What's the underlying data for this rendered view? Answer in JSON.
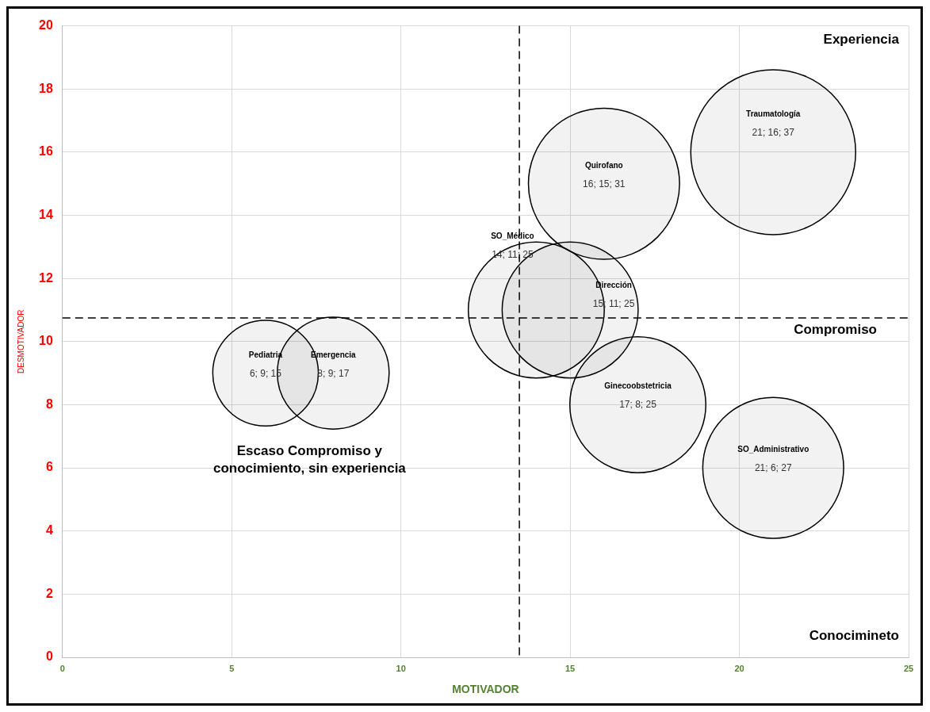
{
  "chart_data": {
    "type": "bubble",
    "xlabel": "MOTIVADOR",
    "ylabel": "DESMOTIVADOR",
    "xlim": [
      0,
      25
    ],
    "xticks": [
      0,
      5,
      10,
      15,
      20,
      25
    ],
    "ylim": [
      0,
      20
    ],
    "yticks": [
      0,
      2,
      4,
      6,
      8,
      10,
      12,
      14,
      16,
      18,
      20
    ],
    "grid": true,
    "legend": false,
    "series": [
      {
        "name": "Pediatria",
        "color": "#000000",
        "x": [
          6
        ],
        "values": [
          9
        ],
        "sizes": [
          0.41
        ],
        "value_labels": [
          "6; 9; 15"
        ]
      },
      {
        "name": "Emergencia",
        "color": "#000000",
        "x": [
          8
        ],
        "values": [
          9
        ],
        "sizes": [
          0.46
        ],
        "value_labels": [
          "8; 9; 17"
        ]
      },
      {
        "name": "SO_Médico",
        "color": "#000000",
        "x": [
          14
        ],
        "values": [
          11
        ],
        "sizes": [
          0.68
        ],
        "value_labels": [
          "14; 11; 25"
        ]
      },
      {
        "name": "Dirección",
        "color": "#000000",
        "x": [
          15
        ],
        "values": [
          11
        ],
        "sizes": [
          0.68
        ],
        "value_labels": [
          "15; 11; 25"
        ]
      },
      {
        "name": "Quirofano",
        "color": "#000000",
        "x": [
          16
        ],
        "values": [
          15
        ],
        "sizes": [
          0.84
        ],
        "value_labels": [
          "16; 15; 31"
        ]
      },
      {
        "name": "Traumatología",
        "color": "#000000",
        "x": [
          21
        ],
        "values": [
          16
        ],
        "sizes": [
          1
        ],
        "value_labels": [
          "21; 16; 37"
        ]
      },
      {
        "name": "Ginecoobstetricia",
        "color": "#000000",
        "x": [
          17
        ],
        "values": [
          8
        ],
        "sizes": [
          0.68
        ],
        "value_labels": [
          "17; 8; 25"
        ]
      },
      {
        "name": "SO_Administrativo",
        "color": "#000000",
        "x": [
          21
        ],
        "values": [
          6
        ],
        "sizes": [
          0.73
        ],
        "value_labels": [
          "21; 6; 27"
        ]
      }
    ],
    "ref_lines": [
      {
        "axis": "x",
        "value": 13.5,
        "color": "#000000",
        "line_style": "dashed"
      },
      {
        "axis": "y",
        "value": 10.75,
        "color": "#000000",
        "line_style": "dashed"
      }
    ],
    "annotations": [
      "Experiencia",
      "Compromiso",
      "Conocimineto",
      "Escaso Compromiso y conocimiento, sin experiencia"
    ]
  }
}
